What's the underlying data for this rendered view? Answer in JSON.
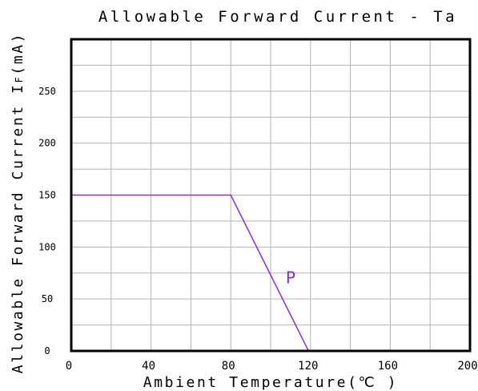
{
  "chart_data": {
    "type": "line",
    "title": "Allowable Forward Current - Ta",
    "xlabel": "Ambient Temperature(℃ )",
    "ylabel": "Allowable Forward Current I",
    "ylabel_sub": "F",
    "ylabel_unit": "(mA)",
    "xlim": [
      0,
      200
    ],
    "ylim": [
      0,
      300
    ],
    "xticks": [
      0,
      40,
      80,
      120,
      160,
      200
    ],
    "yticks": [
      0,
      50,
      100,
      150,
      200,
      250
    ],
    "x_minor_step": 20,
    "y_minor_step": 25,
    "grid": true,
    "series": [
      {
        "x": [
          0,
          80,
          119
        ],
        "y": [
          150,
          150,
          0
        ],
        "color": "#8a2be2"
      }
    ],
    "annotations": [
      {
        "text": "P",
        "x": 110,
        "y": 65,
        "color": "#8a2be2"
      }
    ]
  }
}
